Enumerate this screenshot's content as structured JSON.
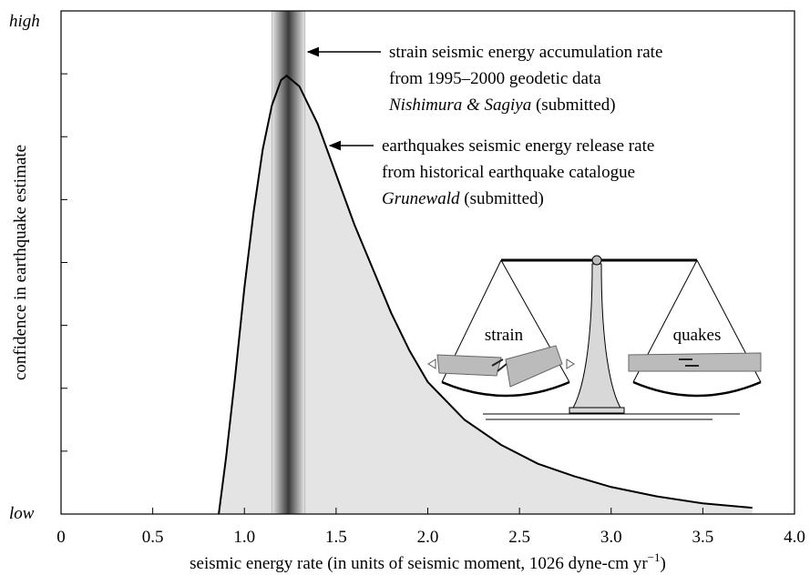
{
  "chart_data": {
    "type": "area",
    "xlabel": "seismic energy rate  (in units of seismic moment, 1026 dyne-cm yr",
    "xlabel_sup": "−1",
    "xlabel_end": ")",
    "ylabel": "confidence in earthquake estimate",
    "xlim": [
      0,
      4.0
    ],
    "xticks": [
      0,
      0.5,
      {
        "value": 1,
        "label": "1.0"
      },
      1.5,
      {
        "value": 2,
        "label": "2.0"
      },
      2.5,
      {
        "value": 3,
        "label": "3.0"
      },
      3.5,
      {
        "value": 4,
        "label": "4.0"
      }
    ],
    "ylim": [
      0,
      8
    ],
    "yticks": [
      {
        "value": 0,
        "label": "low"
      },
      {
        "value": 8,
        "label": "high"
      }
    ],
    "yminorticks": [
      1,
      2,
      3,
      4,
      5,
      6,
      7
    ],
    "series": [
      {
        "color": "#000000",
        "fill": "#e4e4e4",
        "x": [
          0.86,
          0.9,
          0.95,
          1.0,
          1.05,
          1.1,
          1.15,
          1.2,
          1.23,
          1.3,
          1.4,
          1.5,
          1.6,
          1.7,
          1.8,
          1.9,
          2.0,
          2.2,
          2.4,
          2.6,
          2.8,
          3.0,
          3.25,
          3.5,
          3.77
        ],
        "values": [
          0,
          0.9,
          2.2,
          3.6,
          4.8,
          5.8,
          6.5,
          6.9,
          6.97,
          6.8,
          6.2,
          5.4,
          4.6,
          3.9,
          3.2,
          2.6,
          2.1,
          1.5,
          1.1,
          0.8,
          0.6,
          0.43,
          0.28,
          0.17,
          0.1
        ]
      }
    ],
    "band": {
      "from": 1.15,
      "center": 1.24,
      "to": 1.33,
      "color": "#3a3a3a"
    },
    "annotations": {
      "strain": [
        "strain  seismic energy accumulation rate",
        "from 1995–2000 geodetic data",
        "Nishimura & Sagiya",
        " (submitted)"
      ],
      "earthquakes": [
        "earthquakes  seismic energy release rate",
        "from historical earthquake catalogue",
        "Grunewald",
        " (submitted)"
      ]
    },
    "inset": {
      "left": "strain",
      "right": "quakes"
    }
  }
}
